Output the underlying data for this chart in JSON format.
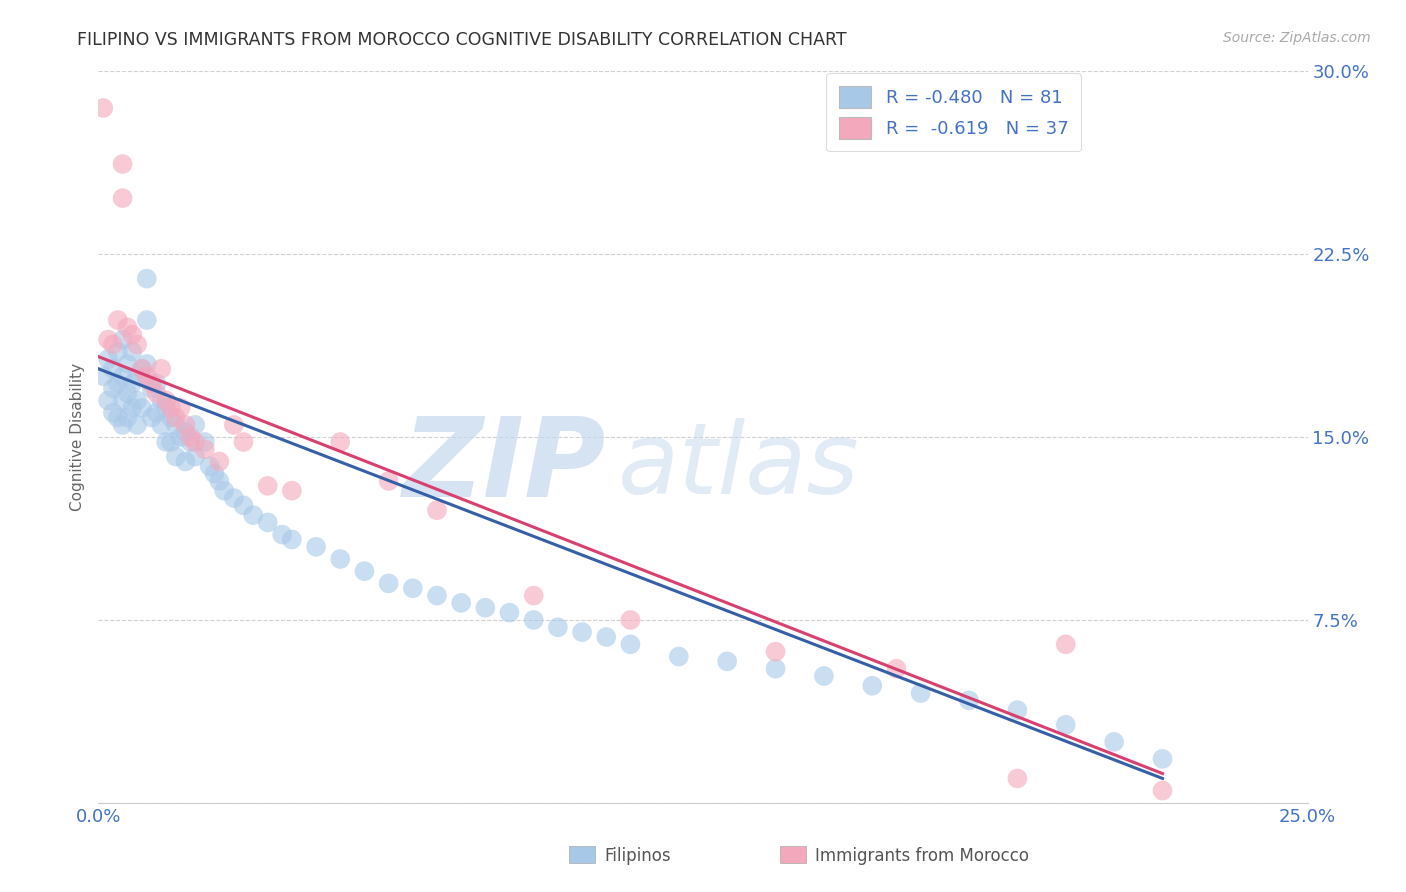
{
  "title": "FILIPINO VS IMMIGRANTS FROM MOROCCO COGNITIVE DISABILITY CORRELATION CHART",
  "source": "Source: ZipAtlas.com",
  "ylabel": "Cognitive Disability",
  "watermark_zip": "ZIP",
  "watermark_atlas": "atlas",
  "filipino_R": -0.48,
  "filipino_N": 81,
  "morocco_R": -0.619,
  "morocco_N": 37,
  "filipino_color": "#a8c8e8",
  "morocco_color": "#f4a8bc",
  "filipino_line_color": "#3560a8",
  "morocco_line_color": "#d84070",
  "title_color": "#333333",
  "axis_label_color": "#4472c4",
  "legend_value_color": "#4472c4",
  "background_color": "#ffffff",
  "grid_color": "#cccccc",
  "xlim": [
    0.0,
    0.25
  ],
  "ylim": [
    0.0,
    0.3
  ],
  "xticks": [
    0.0,
    0.05,
    0.1,
    0.15,
    0.2,
    0.25
  ],
  "yticks": [
    0.0,
    0.075,
    0.15,
    0.225,
    0.3
  ],
  "filipino_x": [
    0.001,
    0.002,
    0.002,
    0.003,
    0.003,
    0.003,
    0.004,
    0.004,
    0.004,
    0.005,
    0.005,
    0.005,
    0.005,
    0.006,
    0.006,
    0.006,
    0.007,
    0.007,
    0.007,
    0.008,
    0.008,
    0.008,
    0.009,
    0.009,
    0.01,
    0.01,
    0.01,
    0.011,
    0.011,
    0.012,
    0.012,
    0.013,
    0.013,
    0.014,
    0.014,
    0.015,
    0.015,
    0.016,
    0.016,
    0.017,
    0.018,
    0.018,
    0.019,
    0.02,
    0.02,
    0.022,
    0.023,
    0.024,
    0.025,
    0.026,
    0.028,
    0.03,
    0.032,
    0.035,
    0.038,
    0.04,
    0.045,
    0.05,
    0.055,
    0.06,
    0.065,
    0.07,
    0.075,
    0.08,
    0.085,
    0.09,
    0.095,
    0.1,
    0.105,
    0.11,
    0.12,
    0.13,
    0.14,
    0.15,
    0.16,
    0.17,
    0.18,
    0.19,
    0.2,
    0.21,
    0.22
  ],
  "filipino_y": [
    0.175,
    0.182,
    0.165,
    0.178,
    0.17,
    0.16,
    0.185,
    0.172,
    0.158,
    0.19,
    0.175,
    0.165,
    0.155,
    0.18,
    0.168,
    0.158,
    0.185,
    0.172,
    0.162,
    0.175,
    0.165,
    0.155,
    0.178,
    0.162,
    0.215,
    0.198,
    0.18,
    0.17,
    0.158,
    0.172,
    0.16,
    0.165,
    0.155,
    0.162,
    0.148,
    0.158,
    0.148,
    0.155,
    0.142,
    0.15,
    0.152,
    0.14,
    0.148,
    0.155,
    0.142,
    0.148,
    0.138,
    0.135,
    0.132,
    0.128,
    0.125,
    0.122,
    0.118,
    0.115,
    0.11,
    0.108,
    0.105,
    0.1,
    0.095,
    0.09,
    0.088,
    0.085,
    0.082,
    0.08,
    0.078,
    0.075,
    0.072,
    0.07,
    0.068,
    0.065,
    0.06,
    0.058,
    0.055,
    0.052,
    0.048,
    0.045,
    0.042,
    0.038,
    0.032,
    0.025,
    0.018
  ],
  "morocco_x": [
    0.001,
    0.002,
    0.003,
    0.004,
    0.005,
    0.005,
    0.006,
    0.007,
    0.008,
    0.009,
    0.01,
    0.011,
    0.012,
    0.013,
    0.014,
    0.015,
    0.016,
    0.017,
    0.018,
    0.019,
    0.02,
    0.022,
    0.025,
    0.028,
    0.03,
    0.035,
    0.04,
    0.05,
    0.06,
    0.07,
    0.09,
    0.11,
    0.14,
    0.165,
    0.19,
    0.2,
    0.22
  ],
  "morocco_y": [
    0.285,
    0.19,
    0.188,
    0.198,
    0.262,
    0.248,
    0.195,
    0.192,
    0.188,
    0.178,
    0.175,
    0.172,
    0.168,
    0.178,
    0.165,
    0.162,
    0.158,
    0.162,
    0.155,
    0.15,
    0.148,
    0.145,
    0.14,
    0.155,
    0.148,
    0.13,
    0.128,
    0.148,
    0.132,
    0.12,
    0.085,
    0.075,
    0.062,
    0.055,
    0.01,
    0.065,
    0.005
  ],
  "filipino_line_x": [
    0.0,
    0.22
  ],
  "filipino_line_y": [
    0.178,
    0.01
  ],
  "morocco_line_x": [
    0.0,
    0.22
  ],
  "morocco_line_y": [
    0.183,
    0.012
  ]
}
